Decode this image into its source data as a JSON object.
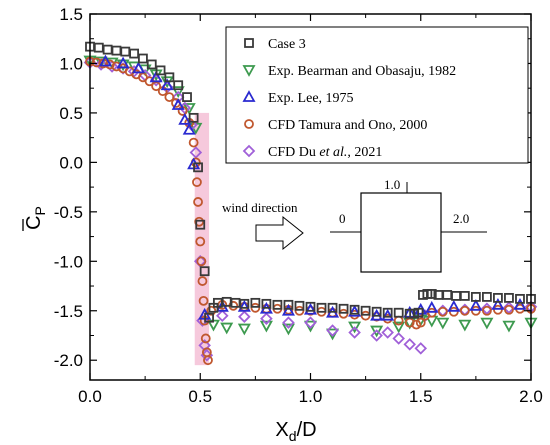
{
  "chart_data": {
    "type": "scatter",
    "xlabel": "X",
    "xlabel_sub": "d",
    "xlabel_suffix": "/D",
    "ylabel": "C",
    "ylabel_sub": "P",
    "xlim": [
      0,
      2.0
    ],
    "ylim": [
      -2.2,
      1.5
    ],
    "xticks": [
      "0.0",
      "0.5",
      "1.0",
      "1.5",
      "2.0"
    ],
    "yticks": [
      "1.5",
      "1.0",
      "0.5",
      "0.0",
      "-0.5",
      "-1.0",
      "-1.5",
      "-2.0"
    ],
    "xtick_values": [
      0,
      0.5,
      1.0,
      1.5,
      2.0
    ],
    "ytick_values": [
      1.5,
      1.0,
      0.5,
      0.0,
      -0.5,
      -1.0,
      -1.5,
      -2.0
    ],
    "grid": false,
    "legend_position": "top-right",
    "series": [
      {
        "name": "Case 3",
        "marker": "square",
        "color": "#3a3a3a",
        "x": [
          0.0,
          0.04,
          0.08,
          0.12,
          0.16,
          0.2,
          0.24,
          0.28,
          0.32,
          0.36,
          0.4,
          0.44,
          0.47,
          0.49,
          0.5,
          0.52,
          0.54,
          0.56,
          0.58,
          0.62,
          0.66,
          0.7,
          0.75,
          0.8,
          0.85,
          0.9,
          0.95,
          1.0,
          1.05,
          1.1,
          1.15,
          1.2,
          1.25,
          1.3,
          1.35,
          1.4,
          1.45,
          1.47,
          1.49,
          1.51,
          1.53,
          1.55,
          1.58,
          1.62,
          1.66,
          1.7,
          1.75,
          1.8,
          1.85,
          1.9,
          1.95,
          2.0
        ],
        "y": [
          1.17,
          1.16,
          1.14,
          1.13,
          1.12,
          1.1,
          1.05,
          0.99,
          0.93,
          0.86,
          0.78,
          0.66,
          0.45,
          -0.05,
          -0.63,
          -1.1,
          -1.57,
          -1.47,
          -1.42,
          -1.41,
          -1.42,
          -1.43,
          -1.42,
          -1.43,
          -1.44,
          -1.44,
          -1.45,
          -1.46,
          -1.47,
          -1.47,
          -1.48,
          -1.49,
          -1.5,
          -1.51,
          -1.52,
          -1.52,
          -1.53,
          -1.53,
          -1.52,
          -1.34,
          -1.33,
          -1.33,
          -1.34,
          -1.34,
          -1.35,
          -1.35,
          -1.36,
          -1.36,
          -1.37,
          -1.37,
          -1.38,
          -1.38
        ]
      },
      {
        "name": "Exp. Bearman and Obasaju, 1982",
        "marker": "triangle-down",
        "color": "#3d9a4f",
        "x": [
          0.0,
          0.05,
          0.1,
          0.15,
          0.2,
          0.25,
          0.3,
          0.35,
          0.4,
          0.45,
          0.48,
          0.56,
          0.62,
          0.7,
          0.8,
          0.9,
          1.0,
          1.1,
          1.2,
          1.3,
          1.4,
          1.45,
          1.5,
          1.55,
          1.6,
          1.7,
          1.8,
          1.9,
          2.0
        ],
        "y": [
          1.03,
          1.02,
          1.01,
          0.99,
          0.97,
          0.94,
          0.89,
          0.82,
          0.72,
          0.55,
          0.35,
          -1.64,
          -1.67,
          -1.68,
          -1.65,
          -1.68,
          -1.65,
          -1.73,
          -1.66,
          -1.7,
          -1.66,
          -1.62,
          -1.59,
          -1.6,
          -1.62,
          -1.64,
          -1.62,
          -1.65,
          -1.62
        ]
      },
      {
        "name": "Exp. Lee, 1975",
        "marker": "triangle-up",
        "color": "#2a2ad0",
        "x": [
          0.07,
          0.15,
          0.22,
          0.3,
          0.35,
          0.4,
          0.43,
          0.45,
          0.47,
          0.52,
          0.6,
          0.7,
          0.8,
          0.9,
          1.0,
          1.1,
          1.2,
          1.3,
          1.35,
          1.45,
          1.5,
          1.55,
          1.65,
          1.75,
          1.85,
          1.95
        ],
        "y": [
          1.02,
          1.0,
          0.95,
          0.86,
          0.78,
          0.58,
          0.43,
          0.33,
          -0.02,
          -1.54,
          -1.46,
          -1.46,
          -1.48,
          -1.5,
          -1.49,
          -1.52,
          -1.51,
          -1.55,
          -1.55,
          -1.52,
          -1.49,
          -1.47,
          -1.46,
          -1.45,
          -1.44,
          -1.44
        ]
      },
      {
        "name": "CFD Tamura and Ono, 2000",
        "marker": "circle",
        "color": "#c0572e",
        "x": [
          0.0,
          0.03,
          0.06,
          0.09,
          0.12,
          0.15,
          0.18,
          0.21,
          0.24,
          0.27,
          0.3,
          0.33,
          0.36,
          0.39,
          0.42,
          0.45,
          0.47,
          0.48,
          0.485,
          0.49,
          0.495,
          0.5,
          0.505,
          0.51,
          0.515,
          0.52,
          0.525,
          0.53,
          0.535,
          0.55,
          0.6,
          0.65,
          0.7,
          0.75,
          0.8,
          0.85,
          0.9,
          0.95,
          1.0,
          1.05,
          1.1,
          1.15,
          1.2,
          1.25,
          1.3,
          1.35,
          1.4,
          1.45,
          1.48,
          1.5,
          1.52,
          1.55,
          1.6,
          1.65,
          1.7,
          1.75,
          1.8,
          1.85,
          1.9,
          1.95,
          2.0
        ],
        "y": [
          1.02,
          1.01,
          1.0,
          0.99,
          0.97,
          0.95,
          0.92,
          0.89,
          0.86,
          0.82,
          0.77,
          0.72,
          0.66,
          0.6,
          0.52,
          0.4,
          0.2,
          0.0,
          -0.2,
          -0.4,
          -0.6,
          -0.8,
          -1.0,
          -1.2,
          -1.4,
          -1.6,
          -1.78,
          -1.92,
          -2.0,
          -1.5,
          -1.44,
          -1.45,
          -1.46,
          -1.47,
          -1.48,
          -1.48,
          -1.49,
          -1.5,
          -1.5,
          -1.51,
          -1.52,
          -1.53,
          -1.54,
          -1.55,
          -1.56,
          -1.58,
          -1.6,
          -1.62,
          -1.64,
          -1.62,
          -1.55,
          -1.52,
          -1.51,
          -1.51,
          -1.5,
          -1.5,
          -1.5,
          -1.49,
          -1.49,
          -1.48,
          -1.48
        ]
      },
      {
        "name": "CFD Du et al., 2021",
        "name_prefix": "CFD Du ",
        "name_italic": "et al.",
        "name_suffix": ", 2021",
        "marker": "diamond",
        "color": "#a060d8",
        "x": [
          0.0,
          0.05,
          0.1,
          0.15,
          0.2,
          0.25,
          0.3,
          0.35,
          0.4,
          0.43,
          0.46,
          0.48,
          0.5,
          0.51,
          0.52,
          0.53,
          0.6,
          0.7,
          0.8,
          0.9,
          1.0,
          1.1,
          1.2,
          1.3,
          1.35,
          1.4,
          1.45,
          1.5,
          1.52,
          1.6,
          1.7,
          1.8,
          1.9,
          2.0
        ],
        "y": [
          1.01,
          0.99,
          0.97,
          0.95,
          0.92,
          0.88,
          0.83,
          0.76,
          0.66,
          0.55,
          0.38,
          0.1,
          -1.0,
          -1.6,
          -1.85,
          -1.95,
          -1.55,
          -1.56,
          -1.58,
          -1.62,
          -1.62,
          -1.7,
          -1.72,
          -1.75,
          -1.72,
          -1.78,
          -1.84,
          -1.88,
          -1.55,
          -1.5,
          -1.49,
          -1.48,
          -1.47,
          -1.46
        ]
      }
    ]
  },
  "annotations": {
    "wind_direction_label": "wind direction",
    "square_top_label": "1.0",
    "square_left_label": "0",
    "square_right_label": "2.0"
  },
  "colors": {
    "highlight_band": "#f6c9dc",
    "axis": "#000000"
  }
}
